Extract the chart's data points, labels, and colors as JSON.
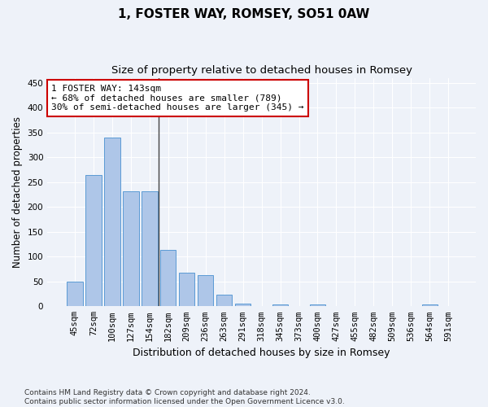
{
  "title": "1, FOSTER WAY, ROMSEY, SO51 0AW",
  "subtitle": "Size of property relative to detached houses in Romsey",
  "xlabel": "Distribution of detached houses by size in Romsey",
  "ylabel": "Number of detached properties",
  "bar_labels": [
    "45sqm",
    "72sqm",
    "100sqm",
    "127sqm",
    "154sqm",
    "182sqm",
    "209sqm",
    "236sqm",
    "263sqm",
    "291sqm",
    "318sqm",
    "345sqm",
    "373sqm",
    "400sqm",
    "427sqm",
    "455sqm",
    "482sqm",
    "509sqm",
    "536sqm",
    "564sqm",
    "591sqm"
  ],
  "bar_values": [
    50,
    265,
    340,
    232,
    232,
    113,
    67,
    62,
    23,
    6,
    0,
    4,
    0,
    4,
    0,
    0,
    0,
    0,
    0,
    4,
    0
  ],
  "bar_color": "#aec6e8",
  "bar_edge_color": "#5b9bd5",
  "annotation_text": "1 FOSTER WAY: 143sqm\n← 68% of detached houses are smaller (789)\n30% of semi-detached houses are larger (345) →",
  "annotation_box_color": "#ffffff",
  "annotation_box_edge_color": "#cc0000",
  "marker_line_color": "#444444",
  "ylim": [
    0,
    460
  ],
  "yticks": [
    0,
    50,
    100,
    150,
    200,
    250,
    300,
    350,
    400,
    450
  ],
  "bg_color": "#eef2f9",
  "grid_color": "#ffffff",
  "footnote": "Contains HM Land Registry data © Crown copyright and database right 2024.\nContains public sector information licensed under the Open Government Licence v3.0.",
  "title_fontsize": 11,
  "subtitle_fontsize": 9.5,
  "xlabel_fontsize": 9,
  "ylabel_fontsize": 8.5,
  "tick_fontsize": 7.5,
  "annotation_fontsize": 8,
  "footnote_fontsize": 6.5
}
